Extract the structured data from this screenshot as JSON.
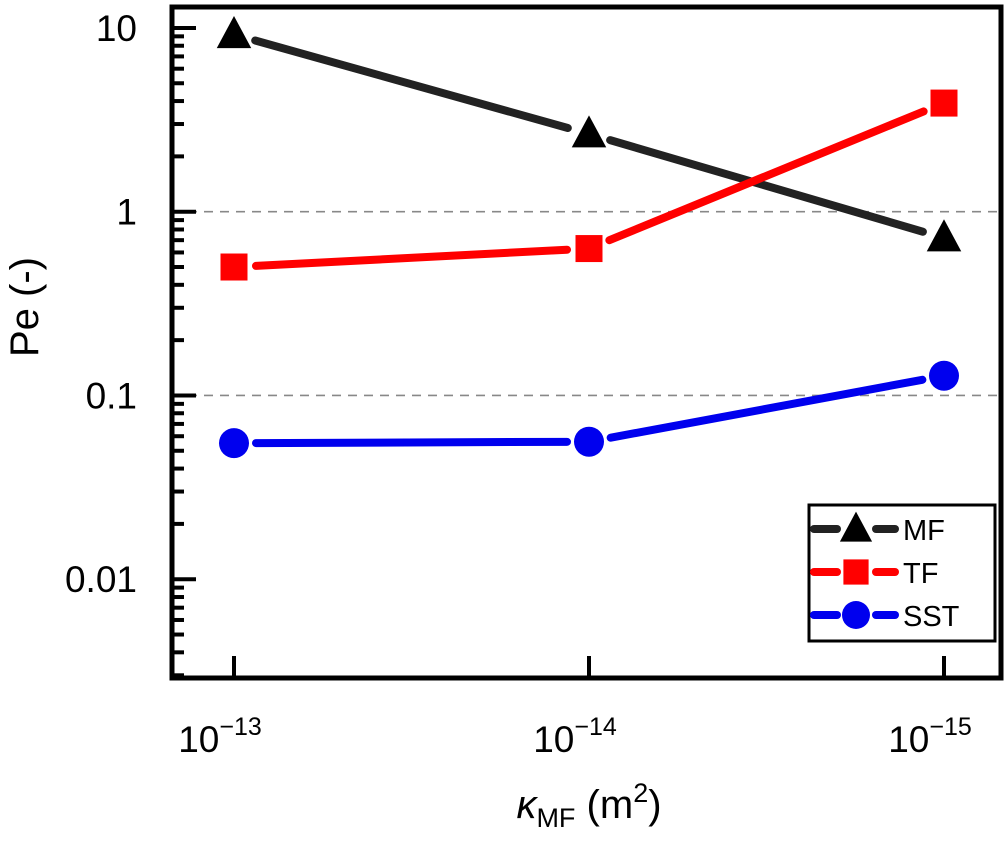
{
  "chart_data": {
    "type": "line",
    "title": "",
    "xlabel": {
      "symbol": "κ",
      "subscript": "MF",
      "unit_open": " (m",
      "unit_sup": "2",
      "unit_close": ")"
    },
    "ylabel": "Pe (-)",
    "x_scale": "categorical",
    "y_scale": "log",
    "ylim": [
      0.0029,
      13
    ],
    "categories": [
      "1e-13",
      "1e-14",
      "1e-15"
    ],
    "x_tick_labels": [
      {
        "base": "10",
        "exp": "−13"
      },
      {
        "base": "10",
        "exp": "−14"
      },
      {
        "base": "10",
        "exp": "−15"
      }
    ],
    "y_ticks": [
      {
        "value": 10,
        "label": "10"
      },
      {
        "value": 1,
        "label": "1"
      },
      {
        "value": 0.1,
        "label": "0.1"
      },
      {
        "value": 0.01,
        "label": "0.01"
      }
    ],
    "reference_lines": [
      1,
      0.1
    ],
    "grid": false,
    "legend_position": "bottom-right",
    "series": [
      {
        "name": "MF",
        "color": "#000000",
        "line_color": "#222222",
        "marker": "triangle",
        "values": [
          9.2,
          2.65,
          0.72
        ]
      },
      {
        "name": "TF",
        "color": "#ff0000",
        "line_color": "#ff0000",
        "marker": "square",
        "values": [
          0.5,
          0.63,
          3.9
        ]
      },
      {
        "name": "SST",
        "color": "#0000ee",
        "line_color": "#0000ee",
        "marker": "circle",
        "values": [
          0.055,
          0.056,
          0.128
        ]
      }
    ]
  }
}
